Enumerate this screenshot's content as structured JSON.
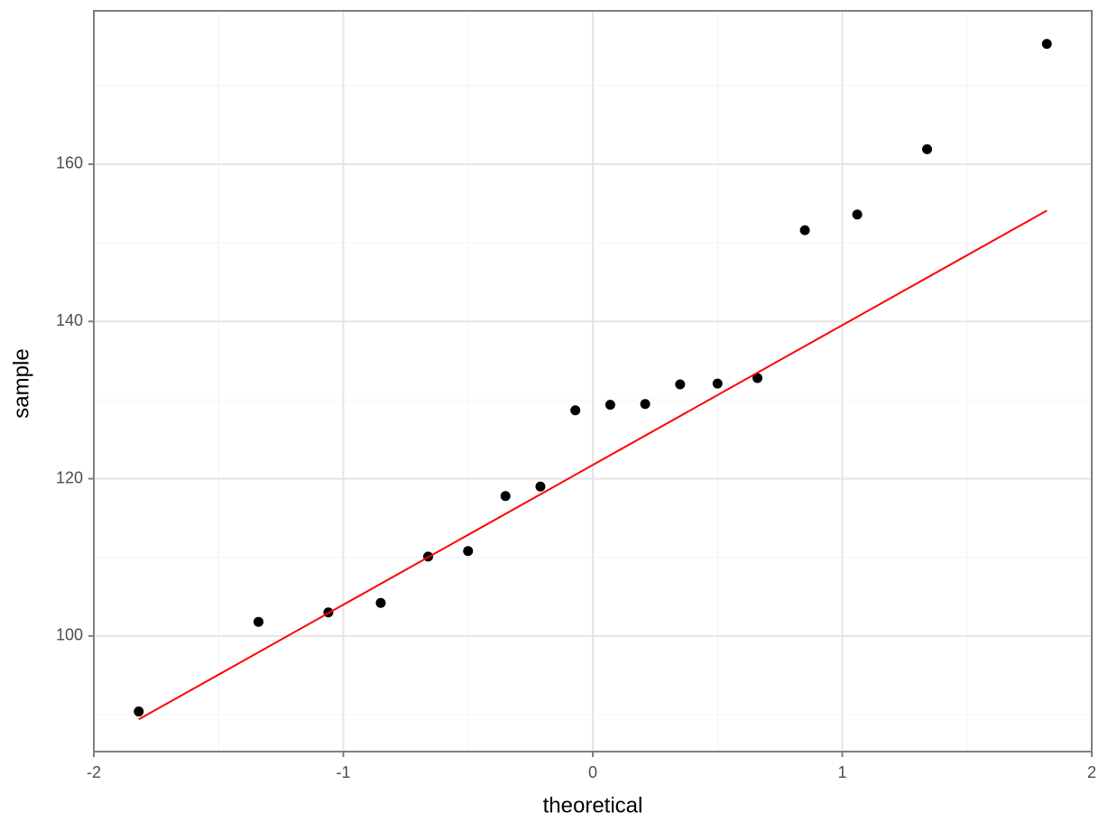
{
  "chart_data": {
    "type": "scatter",
    "x_label": "theoretical",
    "y_label": "sample",
    "series": [
      {
        "mode": "points",
        "color": "#000000",
        "x": [
          -1.82,
          -1.34,
          -1.06,
          -0.85,
          -0.66,
          -0.5,
          -0.35,
          -0.21,
          -0.07,
          0.07,
          0.21,
          0.35,
          0.5,
          0.66,
          0.85,
          1.06,
          1.34,
          1.82
        ],
        "values": [
          90.4,
          101.8,
          103.0,
          104.2,
          110.1,
          110.8,
          117.8,
          119.0,
          128.7,
          129.4,
          129.5,
          132.0,
          132.1,
          132.8,
          151.6,
          153.6,
          161.9,
          175.3
        ]
      },
      {
        "mode": "line",
        "color": "#ff0000",
        "x": [
          -1.82,
          1.82
        ],
        "values": [
          89.4,
          154.1
        ]
      }
    ],
    "xlim": [
      -2,
      2
    ],
    "xticks": [
      -2,
      -1,
      0,
      1,
      2
    ],
    "ylim": [
      85.3,
      179.5
    ],
    "yticks": [
      100,
      120,
      140,
      160
    ],
    "grid": true,
    "minor_grid": true
  }
}
